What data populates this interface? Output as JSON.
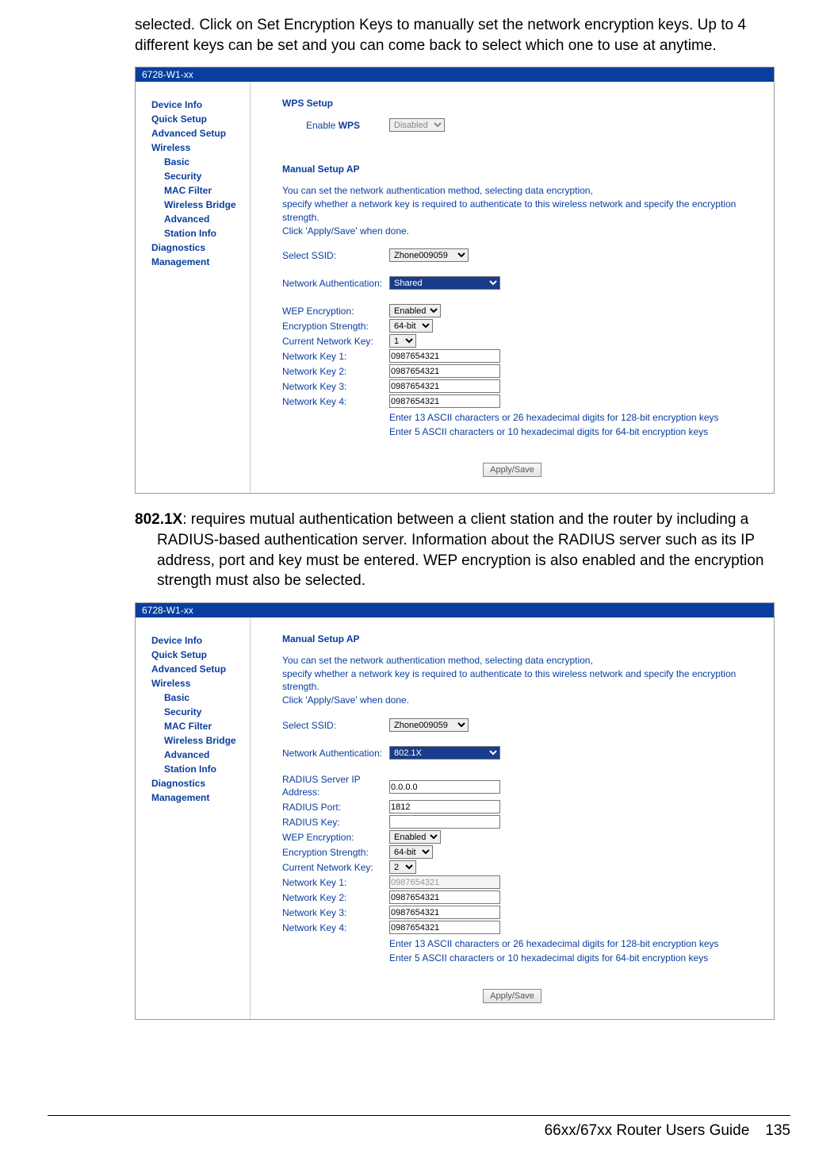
{
  "intro_text": "selected. Click on Set Encryption Keys to manually set the network encryption keys. Up to 4 different keys can be set and you can come back to select which one to use at anytime.",
  "para2_term": "802.1X",
  "para2_rest": ": requires mutual authentication between a client station and the router by including a RADIUS-based authentication server. Information about the RADIUS server such as its IP address, port and key must be entered. WEP encryption is also enabled and the encryption strength must also be selected.",
  "title_bar": "6728-W1-xx",
  "nav": {
    "device_info": "Device Info",
    "quick_setup": "Quick Setup",
    "advanced_setup": "Advanced Setup",
    "wireless": "Wireless",
    "basic": "Basic",
    "security": "Security",
    "mac_filter": "MAC Filter",
    "wireless_bridge": "Wireless Bridge",
    "advanced": "Advanced",
    "station_info": "Station Info",
    "diagnostics": "Diagnostics",
    "management": "Management"
  },
  "panel1": {
    "wps_title": "WPS Setup",
    "enable_wps_label": "Enable WPS",
    "enable_wps_value": "Disabled",
    "manual_title": "Manual Setup AP",
    "desc1": "You can set the network authentication method, selecting data encryption,",
    "desc2": "specify whether a network key is required to authenticate to this wireless network and specify the encryption strength.",
    "desc3": "Click 'Apply/Save' when done.",
    "select_ssid_label": "Select SSID:",
    "select_ssid_value": "Zhone009059",
    "net_auth_label": "Network Authentication:",
    "net_auth_value": "Shared",
    "wep_label": "WEP Encryption:",
    "wep_value": "Enabled",
    "enc_str_label": "Encryption Strength:",
    "enc_str_value": "64-bit",
    "cur_key_label": "Current Network Key:",
    "cur_key_value": "1",
    "nk1_label": "Network Key 1:",
    "nk1_value": "0987654321",
    "nk2_label": "Network Key 2:",
    "nk2_value": "0987654321",
    "nk3_label": "Network Key 3:",
    "nk3_value": "0987654321",
    "nk4_label": "Network Key 4:",
    "nk4_value": "0987654321",
    "help1": "Enter 13 ASCII characters or 26 hexadecimal digits for 128-bit encryption keys",
    "help2": "Enter 5 ASCII characters or 10 hexadecimal digits for 64-bit encryption keys",
    "apply": "Apply/Save"
  },
  "panel2": {
    "manual_title": "Manual Setup AP",
    "desc1": "You can set the network authentication method, selecting data encryption,",
    "desc2": "specify whether a network key is required to authenticate to this wireless network and specify the encryption strength.",
    "desc3": "Click 'Apply/Save' when done.",
    "select_ssid_label": "Select SSID:",
    "select_ssid_value": "Zhone009059",
    "net_auth_label": "Network Authentication:",
    "net_auth_value": "802.1X",
    "radius_ip_label": "RADIUS Server IP Address:",
    "radius_ip_value": "0.0.0.0",
    "radius_port_label": "RADIUS Port:",
    "radius_port_value": "1812",
    "radius_key_label": "RADIUS Key:",
    "radius_key_value": "",
    "wep_label": "WEP Encryption:",
    "wep_value": "Enabled",
    "enc_str_label": "Encryption Strength:",
    "enc_str_value": "64-bit",
    "cur_key_label": "Current Network Key:",
    "cur_key_value": "2",
    "nk1_label": "Network Key 1:",
    "nk1_value": "0987654321",
    "nk2_label": "Network Key 2:",
    "nk2_value": "0987654321",
    "nk3_label": "Network Key 3:",
    "nk3_value": "0987654321",
    "nk4_label": "Network Key 4:",
    "nk4_value": "0987654321",
    "help1": "Enter 13 ASCII characters or 26 hexadecimal digits for 128-bit encryption keys",
    "help2": "Enter 5 ASCII characters or 10 hexadecimal digits for 64-bit encryption keys",
    "apply": "Apply/Save"
  },
  "footer": {
    "guide": "66xx/67xx Router Users Guide",
    "page": "135"
  },
  "colors": {
    "brand_blue": "#0a3e9e",
    "title_bg": "#0a3e9e"
  }
}
